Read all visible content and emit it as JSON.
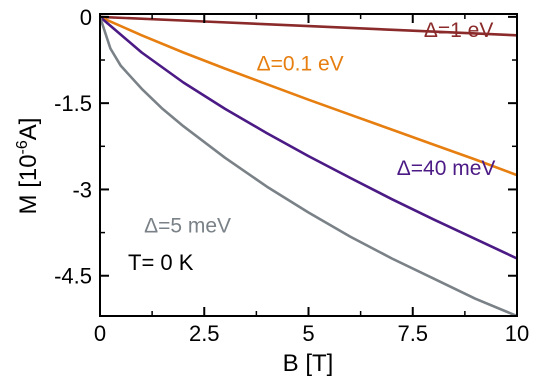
{
  "chart_data": {
    "type": "line",
    "title": "",
    "xlabel": "B [T]",
    "ylabel": {
      "prefix": "M [10",
      "sup": "-6",
      "suffix": "A]"
    },
    "xlim": [
      0,
      10
    ],
    "ylim": [
      -5.2,
      0.05
    ],
    "x_ticks": [
      0,
      2.5,
      5,
      7.5,
      10
    ],
    "x_tick_labels": [
      "0",
      "2.5",
      "5",
      "7.5",
      "10"
    ],
    "y_ticks": [
      0,
      -1.5,
      -3,
      -4.5
    ],
    "y_tick_labels": [
      "0",
      "-1.5",
      "-3",
      "-4.5"
    ],
    "grid": false,
    "legend": "none (series labelled directly on the plot)",
    "annotation": "T= 0 K",
    "series": [
      {
        "name": "Δ=1 eV",
        "color": "#8b2a2a",
        "x": [
          0,
          2.5,
          5,
          7.5,
          10
        ],
        "y": [
          0,
          -0.08,
          -0.16,
          -0.24,
          -0.32
        ]
      },
      {
        "name": "Δ=0.1 eV",
        "color": "#e67e10",
        "x": [
          0,
          1,
          2,
          3,
          4,
          5,
          6,
          7,
          8,
          9,
          10
        ],
        "y": [
          0,
          -0.32,
          -0.62,
          -0.9,
          -1.17,
          -1.44,
          -1.7,
          -1.96,
          -2.22,
          -2.48,
          -2.75
        ]
      },
      {
        "name": "Δ=40 meV",
        "color": "#4b1a85",
        "x": [
          0,
          1,
          2,
          3,
          4,
          5,
          6,
          7,
          8,
          9,
          10
        ],
        "y": [
          0,
          -0.62,
          -1.14,
          -1.6,
          -2.02,
          -2.42,
          -2.8,
          -3.17,
          -3.52,
          -3.86,
          -4.2
        ]
      },
      {
        "name": "Δ=5 meV",
        "color": "#7a8288",
        "x": [
          0,
          0.25,
          0.5,
          1,
          1.5,
          2,
          3,
          4,
          5,
          6,
          7,
          8,
          9,
          10
        ],
        "y": [
          0,
          -0.55,
          -0.85,
          -1.25,
          -1.6,
          -1.9,
          -2.45,
          -2.95,
          -3.4,
          -3.82,
          -4.2,
          -4.55,
          -4.9,
          -5.2
        ]
      }
    ]
  }
}
